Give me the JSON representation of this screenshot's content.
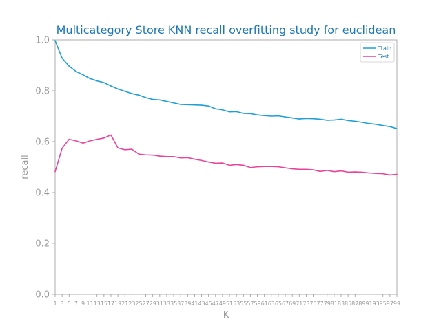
{
  "chart_data": {
    "type": "line",
    "title": "Multicategory Store KNN recall overfitting study for euclidean",
    "xlabel": "K",
    "ylabel": "recall",
    "xlim": [
      1,
      99
    ],
    "ylim": [
      0.0,
      1.0
    ],
    "yticks": [
      "0.0",
      "0.2",
      "0.4",
      "0.6",
      "0.8",
      "1.0"
    ],
    "x": [
      1,
      3,
      5,
      7,
      9,
      11,
      13,
      15,
      17,
      19,
      21,
      23,
      25,
      27,
      29,
      31,
      33,
      35,
      37,
      39,
      41,
      43,
      45,
      47,
      49,
      51,
      53,
      55,
      57,
      59,
      61,
      63,
      65,
      67,
      69,
      71,
      73,
      75,
      77,
      79,
      81,
      83,
      85,
      87,
      89,
      91,
      93,
      95,
      97,
      99
    ],
    "grid": false,
    "legend_position": "top-right",
    "series": [
      {
        "name": "Train",
        "color": "#1f9fd6",
        "values": [
          0.997,
          0.928,
          0.897,
          0.876,
          0.863,
          0.848,
          0.839,
          0.832,
          0.819,
          0.807,
          0.798,
          0.789,
          0.783,
          0.773,
          0.766,
          0.764,
          0.758,
          0.752,
          0.746,
          0.745,
          0.744,
          0.743,
          0.74,
          0.729,
          0.725,
          0.717,
          0.718,
          0.711,
          0.71,
          0.705,
          0.702,
          0.7,
          0.701,
          0.697,
          0.693,
          0.689,
          0.691,
          0.69,
          0.688,
          0.684,
          0.685,
          0.688,
          0.683,
          0.68,
          0.676,
          0.671,
          0.668,
          0.663,
          0.659,
          0.651
        ]
      },
      {
        "name": "Test",
        "color": "#e8449a",
        "values": [
          0.482,
          0.574,
          0.609,
          0.603,
          0.594,
          0.603,
          0.609,
          0.614,
          0.626,
          0.575,
          0.568,
          0.57,
          0.551,
          0.548,
          0.547,
          0.543,
          0.541,
          0.541,
          0.536,
          0.537,
          0.531,
          0.526,
          0.52,
          0.515,
          0.516,
          0.507,
          0.51,
          0.507,
          0.498,
          0.501,
          0.502,
          0.502,
          0.501,
          0.497,
          0.493,
          0.491,
          0.491,
          0.489,
          0.483,
          0.487,
          0.482,
          0.485,
          0.48,
          0.481,
          0.48,
          0.477,
          0.475,
          0.474,
          0.469,
          0.472
        ]
      }
    ]
  }
}
